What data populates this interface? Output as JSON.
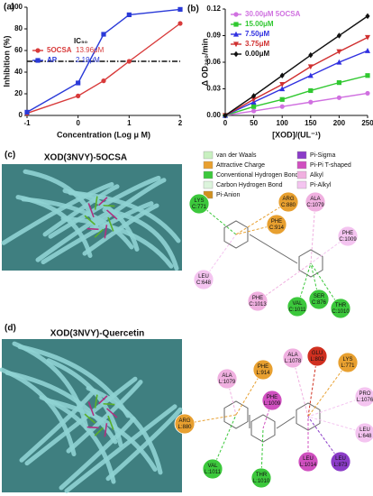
{
  "chart_data": [
    {
      "type": "line",
      "label": "(a)",
      "xlabel": "Concentration (Log μ M)",
      "ylabel": "Inhibition (%)",
      "xlim": [
        -1,
        2
      ],
      "xticks": [
        -1,
        0,
        1,
        2
      ],
      "ylim": [
        0,
        100
      ],
      "yticks": [
        0,
        20,
        40,
        60,
        80,
        100
      ],
      "x": [
        -1,
        0,
        0.5,
        1,
        2
      ],
      "series": [
        {
          "name": "5OCSA",
          "ic50": "13.96μM",
          "color": "#d83a3a",
          "marker": "circle",
          "values": [
            2,
            18,
            32,
            50,
            85
          ]
        },
        {
          "name": "AP",
          "ic50": "2.19μM",
          "color": "#2a3ad8",
          "marker": "square",
          "values": [
            3,
            30,
            75,
            93,
            98
          ]
        }
      ],
      "reference_line": 50,
      "reference_label": "IC₅₀",
      "legend": "center left"
    },
    {
      "type": "line",
      "label": "(b)",
      "xlabel": "[XOD]/(UL⁻¹)",
      "ylabel": "Δ OD₂₉₀/min",
      "xlim": [
        0,
        250
      ],
      "xticks": [
        0,
        50,
        100,
        150,
        200,
        250
      ],
      "ylim": [
        0,
        0.12
      ],
      "yticks": [
        {
          "value": 0,
          "label": "0.00"
        },
        0.03,
        0.06,
        0.09,
        0.12
      ],
      "x": [
        0,
        50,
        100,
        150,
        200,
        250
      ],
      "series": [
        {
          "name": "30.00μM 5OCSA",
          "color": "#d070e0",
          "marker": "circle",
          "values": [
            0,
            0.005,
            0.01,
            0.015,
            0.02,
            0.025
          ]
        },
        {
          "name": "15.00μM",
          "color": "#30c830",
          "marker": "square",
          "values": [
            0,
            0.01,
            0.018,
            0.028,
            0.037,
            0.045
          ]
        },
        {
          "name": "7.50μM",
          "color": "#3030e0",
          "marker": "triangle",
          "values": [
            0,
            0.015,
            0.03,
            0.045,
            0.06,
            0.073
          ]
        },
        {
          "name": "3.75μM",
          "color": "#d03030",
          "marker": "triangle-down",
          "values": [
            0,
            0.018,
            0.035,
            0.055,
            0.072,
            0.088
          ]
        },
        {
          "name": "0.00μM",
          "color": "#111111",
          "marker": "diamond",
          "values": [
            0,
            0.022,
            0.045,
            0.068,
            0.09,
            0.112
          ]
        }
      ],
      "legend": "upper left"
    }
  ],
  "interaction_legend": [
    {
      "text": "van der Waals",
      "color": "#c8f0c0"
    },
    {
      "text": "Attractive Charge",
      "color": "#e8a030"
    },
    {
      "text": "Conventional Hydrogen Bond",
      "color": "#3cc83c"
    },
    {
      "text": "Carbon Hydrogen Bond",
      "color": "#dcf4dc"
    },
    {
      "text": "Pi-Anion",
      "color": "#d09020"
    },
    {
      "text": "Pi-Sigma",
      "color": "#8b3cc8"
    },
    {
      "text": "Pi-Pi T-shaped",
      "color": "#d050c0"
    },
    {
      "text": "Alkyl",
      "color": "#f0b0e0"
    },
    {
      "text": "Pi-Alkyl",
      "color": "#f4c4f0"
    }
  ],
  "panels": [
    {
      "label": "(c)",
      "title": "XOD(3NVY)-5OCSA",
      "residues": [
        {
          "name": "LYS",
          "chain": "C:771",
          "color": "#3cc83c"
        },
        {
          "name": "ARG",
          "chain": "C:880",
          "color": "#e8a030"
        },
        {
          "name": "ALA",
          "chain": "C:1079",
          "color": "#f0b0e0"
        },
        {
          "name": "PHE",
          "chain": "C:1009",
          "color": "#f4c4f0"
        },
        {
          "name": "PHE",
          "chain": "C:914",
          "color": "#e8a030"
        },
        {
          "name": "LEU",
          "chain": "C:648",
          "color": "#f4c4f0"
        },
        {
          "name": "PHE",
          "chain": "C:1013",
          "color": "#f0b0e0"
        },
        {
          "name": "VAL",
          "chain": "C:1011",
          "color": "#3cc83c"
        },
        {
          "name": "SER",
          "chain": "C:876",
          "color": "#3cc83c"
        },
        {
          "name": "THR",
          "chain": "C:1010",
          "color": "#3cc83c"
        }
      ]
    },
    {
      "label": "(d)",
      "title": "XOD(3NVY)-Quercetin",
      "residues": [
        {
          "name": "ALA",
          "chain": "L:1078",
          "color": "#f0b0e0"
        },
        {
          "name": "GLU",
          "chain": "L:802",
          "color": "#d03020"
        },
        {
          "name": "LYS",
          "chain": "L:771",
          "color": "#e8a030"
        },
        {
          "name": "ALA",
          "chain": "L:1079",
          "color": "#f0b0e0"
        },
        {
          "name": "PHE",
          "chain": "L:914",
          "color": "#e8a030"
        },
        {
          "name": "PHE",
          "chain": "L:1009",
          "color": "#d050c0"
        },
        {
          "name": "ARG",
          "chain": "L:880",
          "color": "#e8a030"
        },
        {
          "name": "PRO",
          "chain": "L:1076",
          "color": "#f4c4f0"
        },
        {
          "name": "LEU",
          "chain": "L:648",
          "color": "#f4c4f0"
        },
        {
          "name": "VAL",
          "chain": "L:1011",
          "color": "#3cc83c"
        },
        {
          "name": "THR",
          "chain": "L:1010",
          "color": "#3cc83c"
        },
        {
          "name": "LEU",
          "chain": "L:1014",
          "color": "#d050c0"
        },
        {
          "name": "LEU",
          "chain": "L:873",
          "color": "#8b3cc8"
        }
      ]
    }
  ]
}
